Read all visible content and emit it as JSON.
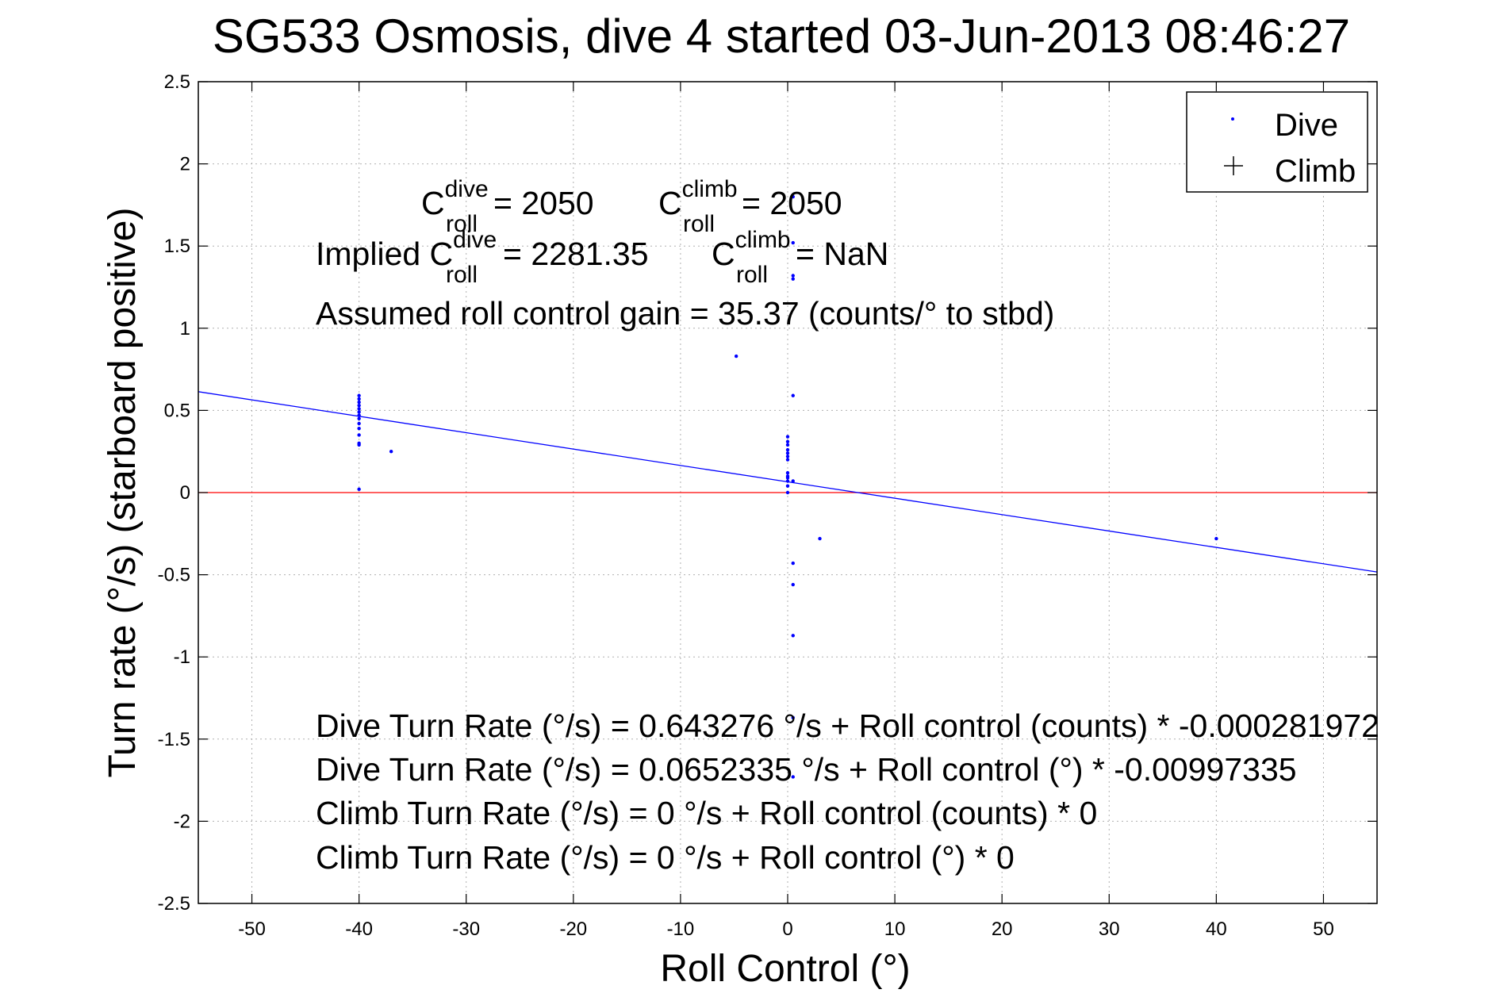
{
  "chart_data": {
    "type": "scatter",
    "title": "SG533 Osmosis, dive 4 started 03-Jun-2013 08:46:27",
    "xlabel": "Roll Control (°)",
    "ylabel": "Turn rate (°/s)  (starboard positive)",
    "xlim": [
      -55,
      55
    ],
    "ylim": [
      -2.5,
      2.5
    ],
    "grid": true,
    "legend_position": "top-right",
    "x_ticks": [
      -50,
      -40,
      -30,
      -20,
      -10,
      0,
      10,
      20,
      30,
      40,
      50
    ],
    "y_ticks": [
      -2.5,
      -2,
      -1.5,
      -1,
      -0.5,
      0,
      0.5,
      1,
      1.5,
      2,
      2.5
    ],
    "x_tick_labels": [
      "-50",
      "-40",
      "-30",
      "-20",
      "-10",
      "0",
      "10",
      "20",
      "30",
      "40",
      "50"
    ],
    "y_tick_labels": [
      "-2.5",
      "-2",
      "-1.5",
      "-1",
      "-0.5",
      "0",
      "0.5",
      "1",
      "1.5",
      "2",
      "2.5"
    ],
    "legend": [
      {
        "label": "Dive",
        "marker": "dot",
        "color": "#0000ff"
      },
      {
        "label": "Climb",
        "marker": "plus",
        "color": "#000000"
      }
    ],
    "series": [
      {
        "name": "Dive",
        "color": "#0000ff",
        "points": [
          [
            -40,
            0.59
          ],
          [
            -40,
            0.57
          ],
          [
            -40,
            0.55
          ],
          [
            -40,
            0.53
          ],
          [
            -40,
            0.51
          ],
          [
            -40,
            0.49
          ],
          [
            -40,
            0.47
          ],
          [
            -40,
            0.45
          ],
          [
            -40,
            0.42
          ],
          [
            -40,
            0.39
          ],
          [
            -40,
            0.35
          ],
          [
            -40,
            0.3
          ],
          [
            -40,
            0.29
          ],
          [
            -40,
            0.02
          ],
          [
            -37,
            0.25
          ],
          [
            -4.8,
            0.83
          ],
          [
            0,
            0.34
          ],
          [
            0,
            0.31
          ],
          [
            0,
            0.29
          ],
          [
            0,
            0.26
          ],
          [
            0,
            0.24
          ],
          [
            0,
            0.22
          ],
          [
            0,
            0.2
          ],
          [
            0,
            0.12
          ],
          [
            0,
            0.1
          ],
          [
            0,
            0.09
          ],
          [
            0,
            0.07
          ],
          [
            0,
            0.04
          ],
          [
            0,
            0.0
          ],
          [
            0.5,
            1.8
          ],
          [
            0.5,
            1.52
          ],
          [
            0.5,
            1.32
          ],
          [
            0.5,
            1.3
          ],
          [
            0.5,
            0.59
          ],
          [
            0.5,
            0.07
          ],
          [
            0.5,
            -0.43
          ],
          [
            0.5,
            -0.56
          ],
          [
            0.5,
            -0.87
          ],
          [
            0.5,
            -1.37
          ],
          [
            0.5,
            -1.73
          ],
          [
            3,
            -0.28
          ],
          [
            40,
            -0.28
          ]
        ]
      },
      {
        "name": "Climb",
        "color": "#000000",
        "points": []
      }
    ],
    "fit_line": {
      "intercept": 0.0652335,
      "slope": -0.00997335,
      "color": "#0000ff"
    },
    "zero_line": {
      "y": 0,
      "color": "#ff0000"
    },
    "annotations": {
      "cdive": {
        "base": "C",
        "sup": "dive",
        "sub": "roll",
        "value": " = 2050"
      },
      "cclimb": {
        "base": "C",
        "sup": "climb",
        "sub": "roll",
        "value": " = 2050"
      },
      "implied_prefix": "Implied C",
      "implied_dive": {
        "sup": "dive",
        "sub": "roll",
        "value": " = 2281.35"
      },
      "implied_climb": {
        "base": "C",
        "sup": "climb",
        "sub": "roll",
        "value": " = NaN"
      },
      "gain": "Assumed roll control gain = 35.37 (counts/° to stbd)",
      "eq1": "Dive Turn Rate (°/s) = 0.643276 °/s + Roll control (counts) * -0.000281972",
      "eq2": "Dive Turn Rate (°/s) = 0.0652335 °/s + Roll control (°) * -0.00997335",
      "eq3": "Climb Turn Rate (°/s) = 0 °/s + Roll control (counts) * 0",
      "eq4": "Climb Turn Rate (°/s) = 0 °/s + Roll control (°) * 0"
    }
  }
}
